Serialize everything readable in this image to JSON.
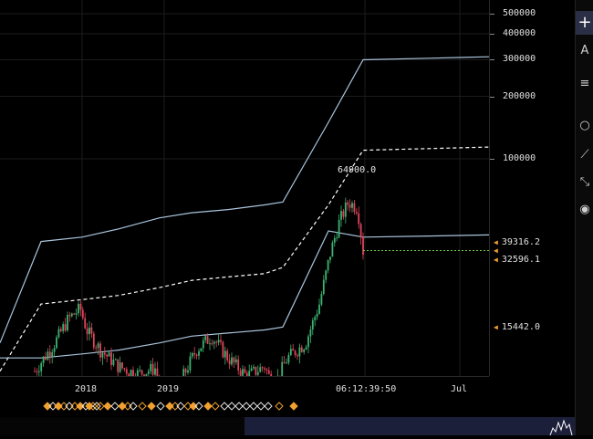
{
  "price_axis": {
    "ticks": [
      "500000",
      "400000",
      "300000",
      "200000",
      "100000"
    ],
    "tags": [
      {
        "label": "64900.0",
        "kind": "annotation"
      },
      {
        "label": "39316.2",
        "kind": "axis"
      },
      {
        "label": "32596.1",
        "kind": "axis"
      },
      {
        "label": "15442.0",
        "kind": "axis"
      }
    ]
  },
  "time_axis": {
    "labels": [
      "2018",
      "2019",
      "06:12:39:50",
      "Jul"
    ]
  },
  "toolbar": {
    "items": [
      {
        "icon": "plus-icon",
        "glyph": "+"
      },
      {
        "icon": "text-tool-icon",
        "glyph": "A"
      },
      {
        "icon": "fib-tool-icon",
        "glyph": "≡"
      },
      {
        "icon": "shape-tool-icon",
        "glyph": "○"
      },
      {
        "icon": "pattern-tool-icon",
        "glyph": "⟋"
      },
      {
        "icon": "measure-tool-icon",
        "glyph": "⤡"
      },
      {
        "icon": "eye-icon",
        "glyph": "◉"
      }
    ]
  },
  "colors": {
    "background": "#000000",
    "up_candle": "#3cb371",
    "down_candle": "#e0455a",
    "band": "#a9c4dc",
    "midline": "#ffffff",
    "current_price_line": "#6cc644",
    "tag_arrow": "#f0a030",
    "event_marker": "#f0a030",
    "bottom_panel": "#1c1f3a"
  },
  "chart_data": {
    "type": "line",
    "title": "",
    "scale": "log",
    "ylim": [
      9000,
      500000
    ],
    "y_ticks": [
      100000,
      200000,
      300000,
      400000,
      500000
    ],
    "x_ticks": [
      "2018",
      "2019",
      "06:12:39:50",
      "Jul"
    ],
    "annotations": [
      {
        "label": "64900.0",
        "value": 64900
      }
    ],
    "price_tags": [
      39316.2,
      32596.1,
      15442.0
    ],
    "series": [
      {
        "role": "upper-band",
        "values": [
          13000,
          40000,
          42000,
          46000,
          52000,
          55000,
          57000,
          60000,
          62000,
          150000,
          300000,
          305000,
          310000
        ]
      },
      {
        "role": "mid-line",
        "values": [
          9500,
          20000,
          21000,
          22000,
          24000,
          26000,
          27000,
          28000,
          30000,
          60000,
          110000,
          112000,
          114000
        ]
      },
      {
        "role": "lower-band",
        "values": [
          11000,
          11000,
          11500,
          12000,
          13000,
          14000,
          14500,
          15000,
          15500,
          45000,
          42000,
          42500,
          43000
        ]
      }
    ]
  }
}
